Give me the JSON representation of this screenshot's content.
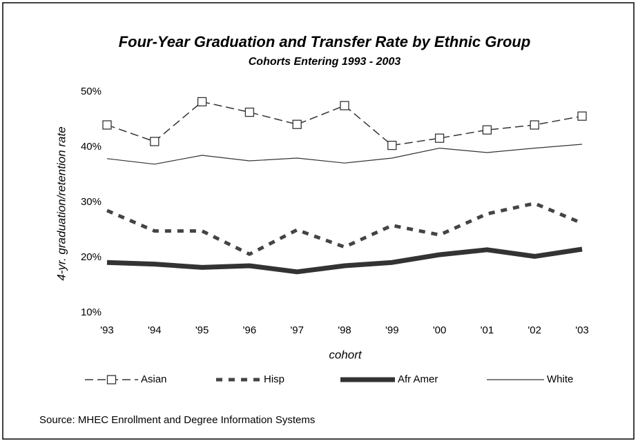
{
  "chart_data": {
    "type": "line",
    "title": "Four-Year Graduation and Transfer Rate by Ethnic Group",
    "subtitle": "Cohorts Entering 1993 - 2003",
    "y_label": "4-yr. graduation/retention rate",
    "x_label": "cohort",
    "source": "Source: MHEC Enrollment and Degree Information Systems",
    "categories": [
      "'93",
      "'94",
      "'95",
      "'96",
      "'97",
      "'98",
      "'99",
      "'00",
      "'01",
      "'02",
      "'03"
    ],
    "series": [
      {
        "name": "Asian",
        "color": "#333333",
        "width": 1.5,
        "dash": "12 6",
        "marker": "square",
        "values": [
          44,
          41,
          48.2,
          46.3,
          44.1,
          47.5,
          40.3,
          41.6,
          43.1,
          44,
          45.6
        ]
      },
      {
        "name": "Hisp",
        "color": "#444444",
        "width": 5,
        "dash": "9 9",
        "marker": null,
        "values": [
          28.5,
          24.8,
          24.8,
          20.6,
          25,
          21.9,
          25.8,
          24.1,
          27.9,
          29.8,
          26.2
        ]
      },
      {
        "name": "Afr Amer",
        "color": "#333333",
        "width": 7,
        "dash": null,
        "marker": null,
        "values": [
          19.1,
          18.8,
          18.2,
          18.5,
          17.4,
          18.5,
          19.1,
          20.5,
          21.4,
          20.2,
          21.5
        ]
      },
      {
        "name": "White",
        "color": "#333333",
        "width": 1.2,
        "dash": null,
        "marker": null,
        "values": [
          37.9,
          36.9,
          38.5,
          37.5,
          38,
          37.1,
          38,
          39.8,
          39,
          39.8,
          40.5
        ]
      }
    ],
    "ylim": [
      10,
      50
    ],
    "yticks": [
      {
        "value": 10,
        "label": "10%"
      },
      {
        "value": 20,
        "label": "20%"
      },
      {
        "value": 30,
        "label": "30%"
      },
      {
        "value": 40,
        "label": "40%"
      },
      {
        "value": 50,
        "label": "50%"
      }
    ],
    "legend": "bottom"
  }
}
